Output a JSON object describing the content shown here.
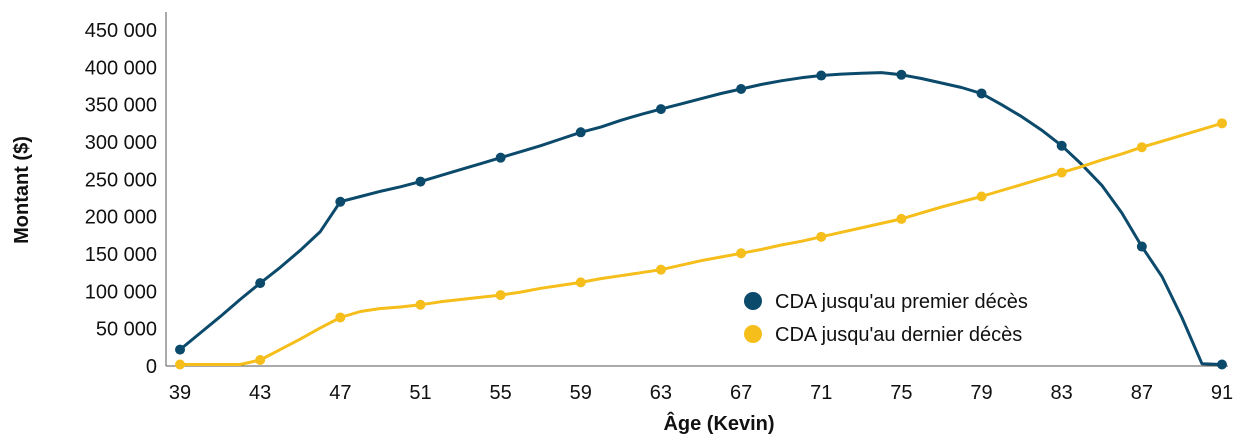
{
  "chart_data": {
    "type": "line",
    "xlabel": "Âge (Kevin)",
    "ylabel": "Montant ($)",
    "x_ticks": [
      "39",
      "43",
      "47",
      "51",
      "55",
      "59",
      "63",
      "67",
      "71",
      "75",
      "79",
      "83",
      "87",
      "91"
    ],
    "y_ticks": [
      "0",
      "50 000",
      "100 000",
      "150 000",
      "200 000",
      "250 000",
      "300 000",
      "350 000",
      "400 000",
      "450 000"
    ],
    "xlim": [
      38.3,
      91.3
    ],
    "ylim": [
      0,
      450000
    ],
    "grid": false,
    "legend_position": "center-right",
    "series": [
      {
        "name": "CDA jusqu'au premier décès",
        "color": "#0b4a6b",
        "x": [
          39,
          40,
          41,
          42,
          43,
          44,
          45,
          46,
          47,
          48,
          49,
          50,
          51,
          52,
          53,
          54,
          55,
          56,
          57,
          58,
          59,
          60,
          61,
          62,
          63,
          64,
          65,
          66,
          67,
          68,
          69,
          70,
          71,
          72,
          73,
          74,
          75,
          76,
          77,
          78,
          79,
          80,
          81,
          82,
          83,
          84,
          85,
          86,
          87,
          88,
          89,
          90,
          91
        ],
        "y": [
          22000,
          44000,
          66000,
          89000,
          111000,
          132000,
          155000,
          180000,
          220000,
          227000,
          234000,
          240000,
          247000,
          255000,
          263000,
          271000,
          279000,
          287000,
          295000,
          304000,
          313000,
          320000,
          329000,
          337000,
          344000,
          351000,
          358000,
          365000,
          371000,
          377000,
          382000,
          386000,
          389000,
          391000,
          392000,
          393000,
          390000,
          385000,
          379000,
          373000,
          365000,
          350000,
          334000,
          316000,
          295000,
          270000,
          242000,
          205000,
          160000,
          120000,
          65000,
          3000,
          2000
        ],
        "marker_x": [
          39,
          43,
          47,
          51,
          55,
          59,
          63,
          67,
          71,
          75,
          79,
          83,
          87,
          91
        ]
      },
      {
        "name": "CDA jusqu'au dernier décès",
        "color": "#f5be1b",
        "x": [
          39,
          40,
          41,
          42,
          43,
          44,
          45,
          46,
          47,
          48,
          49,
          50,
          51,
          52,
          53,
          54,
          55,
          56,
          57,
          58,
          59,
          60,
          61,
          62,
          63,
          64,
          65,
          66,
          67,
          68,
          69,
          70,
          71,
          72,
          73,
          74,
          75,
          76,
          77,
          78,
          79,
          80,
          81,
          82,
          83,
          84,
          85,
          86,
          87,
          88,
          89,
          90,
          91
        ],
        "y": [
          2000,
          2000,
          2000,
          2000,
          8000,
          22000,
          36000,
          51000,
          65000,
          73000,
          77000,
          79000,
          82000,
          86000,
          89000,
          92000,
          95000,
          99000,
          104000,
          108000,
          112000,
          117000,
          121000,
          125000,
          129000,
          135000,
          141000,
          146000,
          151000,
          156000,
          162000,
          167000,
          173000,
          179000,
          185000,
          191000,
          197000,
          205000,
          213000,
          220000,
          227000,
          235000,
          243000,
          251000,
          259000,
          267000,
          276000,
          284000,
          293000,
          301000,
          309000,
          317000,
          325000
        ],
        "marker_x": [
          39,
          43,
          47,
          51,
          55,
          59,
          63,
          67,
          71,
          75,
          79,
          83,
          87,
          91
        ]
      }
    ]
  }
}
